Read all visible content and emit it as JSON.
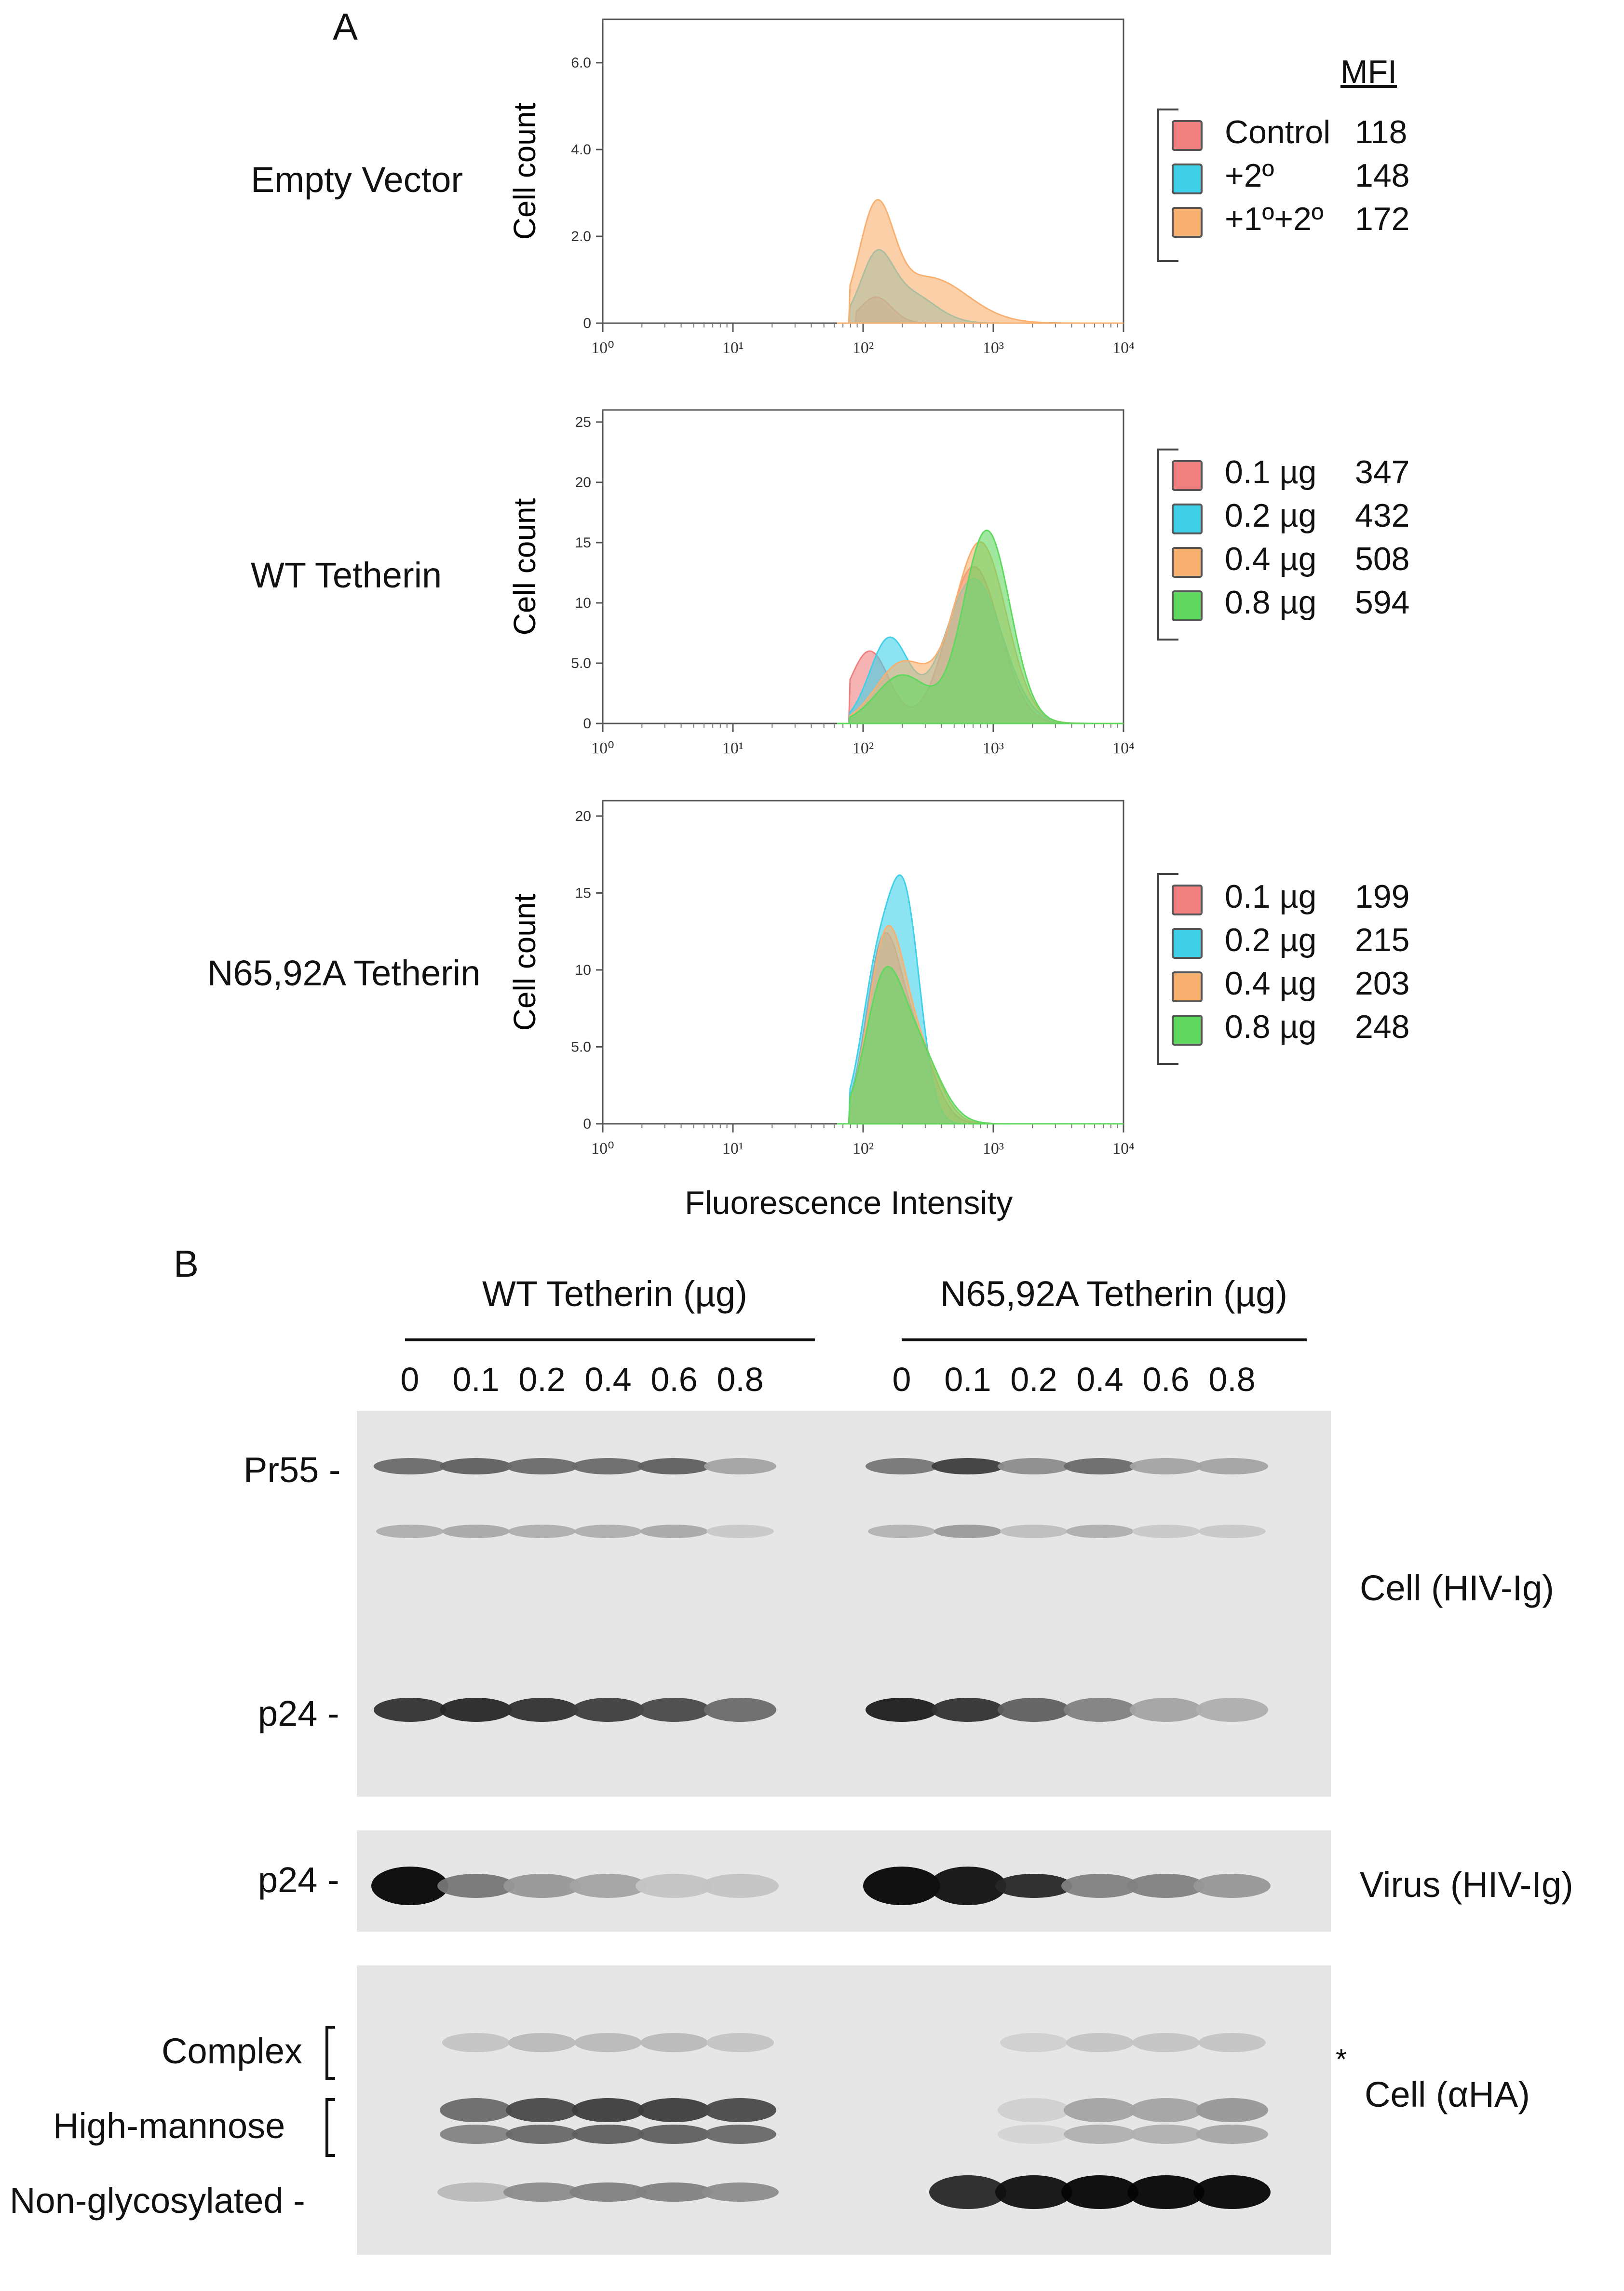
{
  "panel_a": {
    "letter": "A",
    "mfi_header": "MFI",
    "x_axis_title": "Fluorescence Intensity",
    "x_ticks": [
      "10⁰",
      "10¹",
      "10²",
      "10³",
      "10⁴"
    ],
    "y_axis_title": "Cell count",
    "histograms": [
      {
        "label": "Empty Vector",
        "y_ticks": [
          "0",
          "2.0",
          "4.0",
          "6.0"
        ],
        "ymax": 7,
        "legend": [
          {
            "name": "Control",
            "mfi": "118",
            "color": "#f08080"
          },
          {
            "name": "+2º",
            "mfi": "148",
            "color": "#40d0e8"
          },
          {
            "name": "+1º+2º",
            "mfi": "172",
            "color": "#f8b070"
          }
        ]
      },
      {
        "label": "WT Tetherin",
        "y_ticks": [
          "0",
          "5.0",
          "10",
          "15",
          "20",
          "25"
        ],
        "ymax": 26,
        "legend": [
          {
            "name": "0.1 µg",
            "mfi": "347",
            "color": "#f08080"
          },
          {
            "name": "0.2 µg",
            "mfi": "432",
            "color": "#40d0e8"
          },
          {
            "name": "0.4 µg",
            "mfi": "508",
            "color": "#f8b070"
          },
          {
            "name": "0.8 µg",
            "mfi": "594",
            "color": "#60d860"
          }
        ]
      },
      {
        "label": "N65,92A Tetherin",
        "y_ticks": [
          "0",
          "5.0",
          "10",
          "15",
          "20"
        ],
        "ymax": 21,
        "legend": [
          {
            "name": "0.1 µg",
            "mfi": "199",
            "color": "#f08080"
          },
          {
            "name": "0.2 µg",
            "mfi": "215",
            "color": "#40d0e8"
          },
          {
            "name": "0.4 µg",
            "mfi": "203",
            "color": "#f8b070"
          },
          {
            "name": "0.8 µg",
            "mfi": "248",
            "color": "#60d860"
          }
        ]
      }
    ]
  },
  "panel_b": {
    "letter": "B",
    "group_wt": "WT Tetherin (µg)",
    "group_mut": "N65,92A Tetherin (µg)",
    "lanes": [
      "0",
      "0.1",
      "0.2",
      "0.4",
      "0.6",
      "0.8",
      "0",
      "0.1",
      "0.2",
      "0.4",
      "0.6",
      "0.8"
    ],
    "blot1": {
      "side_label": "Cell (HIV-Ig)",
      "band_labels": [
        "Pr55 -",
        "p24 -"
      ],
      "pr55_intensity": [
        0.55,
        0.6,
        0.55,
        0.55,
        0.6,
        0.3,
        0.5,
        0.75,
        0.4,
        0.55,
        0.3,
        0.3
      ],
      "p24_intensity": [
        0.8,
        0.85,
        0.8,
        0.75,
        0.7,
        0.55,
        0.9,
        0.8,
        0.6,
        0.45,
        0.3,
        0.25
      ]
    },
    "blot2": {
      "side_label": "Virus (HIV-Ig)",
      "band_labels": [
        "p24 -"
      ],
      "p24_intensity": [
        1.0,
        0.5,
        0.35,
        0.3,
        0.15,
        0.15,
        1.0,
        0.95,
        0.85,
        0.45,
        0.45,
        0.35
      ]
    },
    "blot3": {
      "side_label": "Cell (αHA)",
      "band_labels": [
        "Complex",
        "High-mannose",
        "Non-glycosylated -"
      ],
      "asterisk": "*",
      "complex_intensity": [
        0,
        0.15,
        0.2,
        0.2,
        0.2,
        0.15,
        0,
        0,
        0.1,
        0.15,
        0.15,
        0.15
      ],
      "highmannose_intensity": [
        0,
        0.55,
        0.7,
        0.75,
        0.75,
        0.7,
        0,
        0,
        0.1,
        0.3,
        0.3,
        0.35
      ],
      "nonglyc_intensity": [
        0,
        0.2,
        0.4,
        0.45,
        0.45,
        0.4,
        0,
        0.85,
        0.95,
        1.0,
        1.0,
        1.0
      ]
    }
  }
}
